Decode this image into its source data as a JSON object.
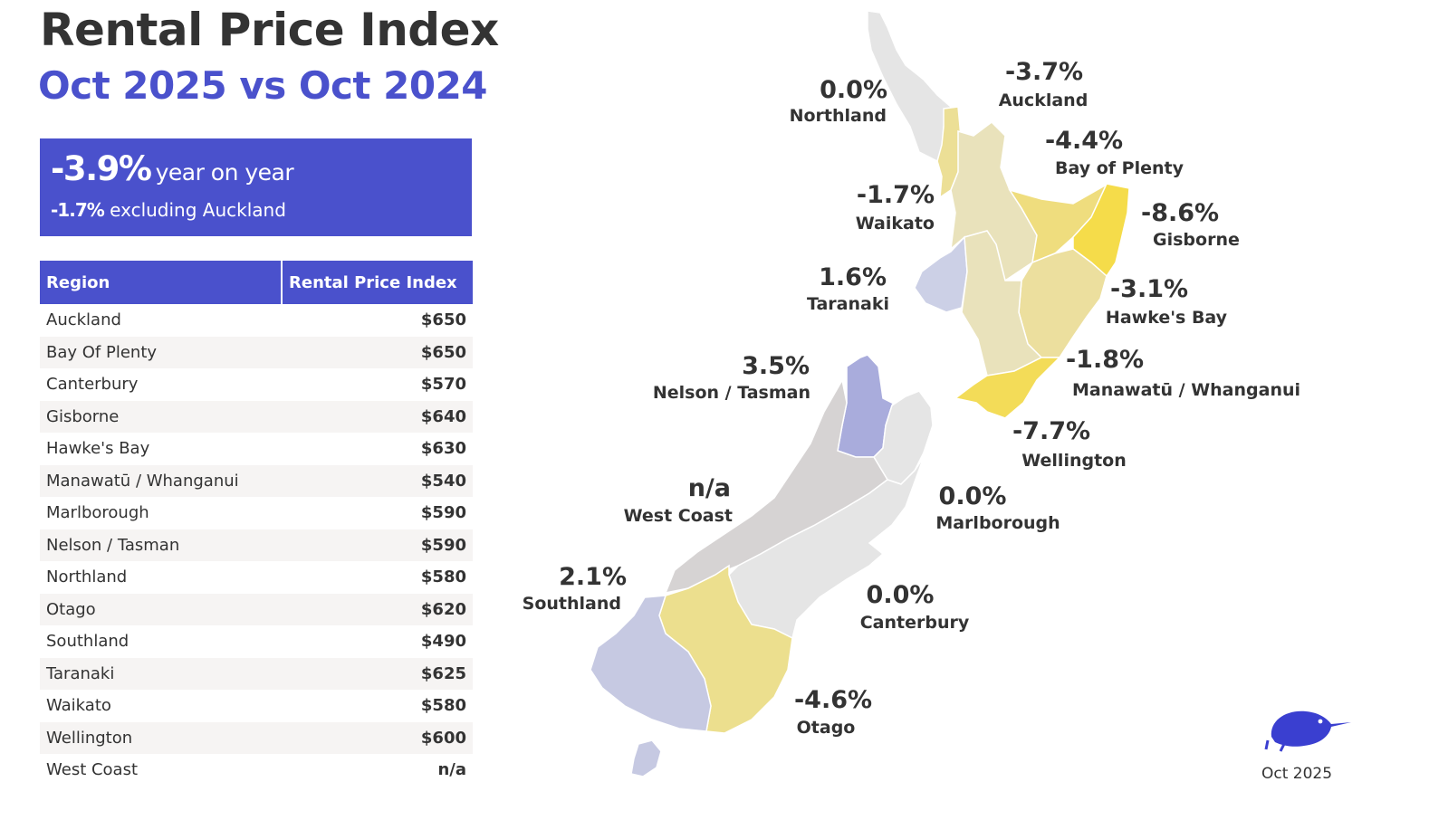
{
  "header": {
    "title": "Rental Price Index",
    "subtitle": "Oct 2025 vs Oct 2024"
  },
  "summary": {
    "headline_value": "-3.9%",
    "headline_text": "year on year",
    "secondary_value": "-1.7%",
    "secondary_text": "excluding Auckland"
  },
  "table": {
    "headers": [
      "Region",
      "Rental Price Index"
    ],
    "rows": [
      {
        "region": "Auckland",
        "value": "$650"
      },
      {
        "region": "Bay Of Plenty",
        "value": "$650"
      },
      {
        "region": "Canterbury",
        "value": "$570"
      },
      {
        "region": "Gisborne",
        "value": "$640"
      },
      {
        "region": "Hawke's Bay",
        "value": "$630"
      },
      {
        "region": "Manawatū / Whanganui",
        "value": "$540"
      },
      {
        "region": "Marlborough",
        "value": "$590"
      },
      {
        "region": "Nelson / Tasman",
        "value": "$590"
      },
      {
        "region": "Northland",
        "value": "$580"
      },
      {
        "region": "Otago",
        "value": "$620"
      },
      {
        "region": "Southland",
        "value": "$490"
      },
      {
        "region": "Taranaki",
        "value": "$625"
      },
      {
        "region": "Waikato",
        "value": "$580"
      },
      {
        "region": "Wellington",
        "value": "$600"
      },
      {
        "region": "West Coast",
        "value": "n/a"
      }
    ]
  },
  "map_labels": [
    {
      "id": "northland",
      "change": "0.0%",
      "name": "Northland",
      "color": "#e5e5e5"
    },
    {
      "id": "auckland",
      "change": "-3.7%",
      "name": "Auckland",
      "color": "#ecdf96"
    },
    {
      "id": "bay-of-plenty",
      "change": "-4.4%",
      "name": "Bay of Plenty",
      "color": "#efdd7e"
    },
    {
      "id": "waikato",
      "change": "-1.7%",
      "name": "Waikato",
      "color": "#e9e2bb"
    },
    {
      "id": "gisborne",
      "change": "-8.6%",
      "name": "Gisborne",
      "color": "#f5dc4a"
    },
    {
      "id": "taranaki",
      "change": "1.6%",
      "name": "Taranaki",
      "color": "#ccd0e6"
    },
    {
      "id": "hawkes-bay",
      "change": "-3.1%",
      "name": "Hawke's Bay",
      "color": "#ecdf9e"
    },
    {
      "id": "manawatu",
      "change": "-1.8%",
      "name": "Manawatū / Whanganui",
      "color": "#e9e2bb"
    },
    {
      "id": "nelson",
      "change": "3.5%",
      "name": "Nelson / Tasman",
      "color": "#a9acdc"
    },
    {
      "id": "wellington",
      "change": "-7.7%",
      "name": "Wellington",
      "color": "#f3dc58"
    },
    {
      "id": "west-coast",
      "change": "n/a",
      "name": "West Coast",
      "color": "#d6d3d3"
    },
    {
      "id": "marlborough",
      "change": "0.0%",
      "name": "Marlborough",
      "color": "#e5e5e5"
    },
    {
      "id": "southland",
      "change": "2.1%",
      "name": "Southland",
      "color": "#c6c9e2"
    },
    {
      "id": "canterbury",
      "change": "0.0%",
      "name": "Canterbury",
      "color": "#e5e5e5"
    },
    {
      "id": "otago",
      "change": "-4.6%",
      "name": "Otago",
      "color": "#ecdf8e"
    }
  ],
  "logo": {
    "date": "Oct 2025",
    "color": "#3a3fd0"
  }
}
